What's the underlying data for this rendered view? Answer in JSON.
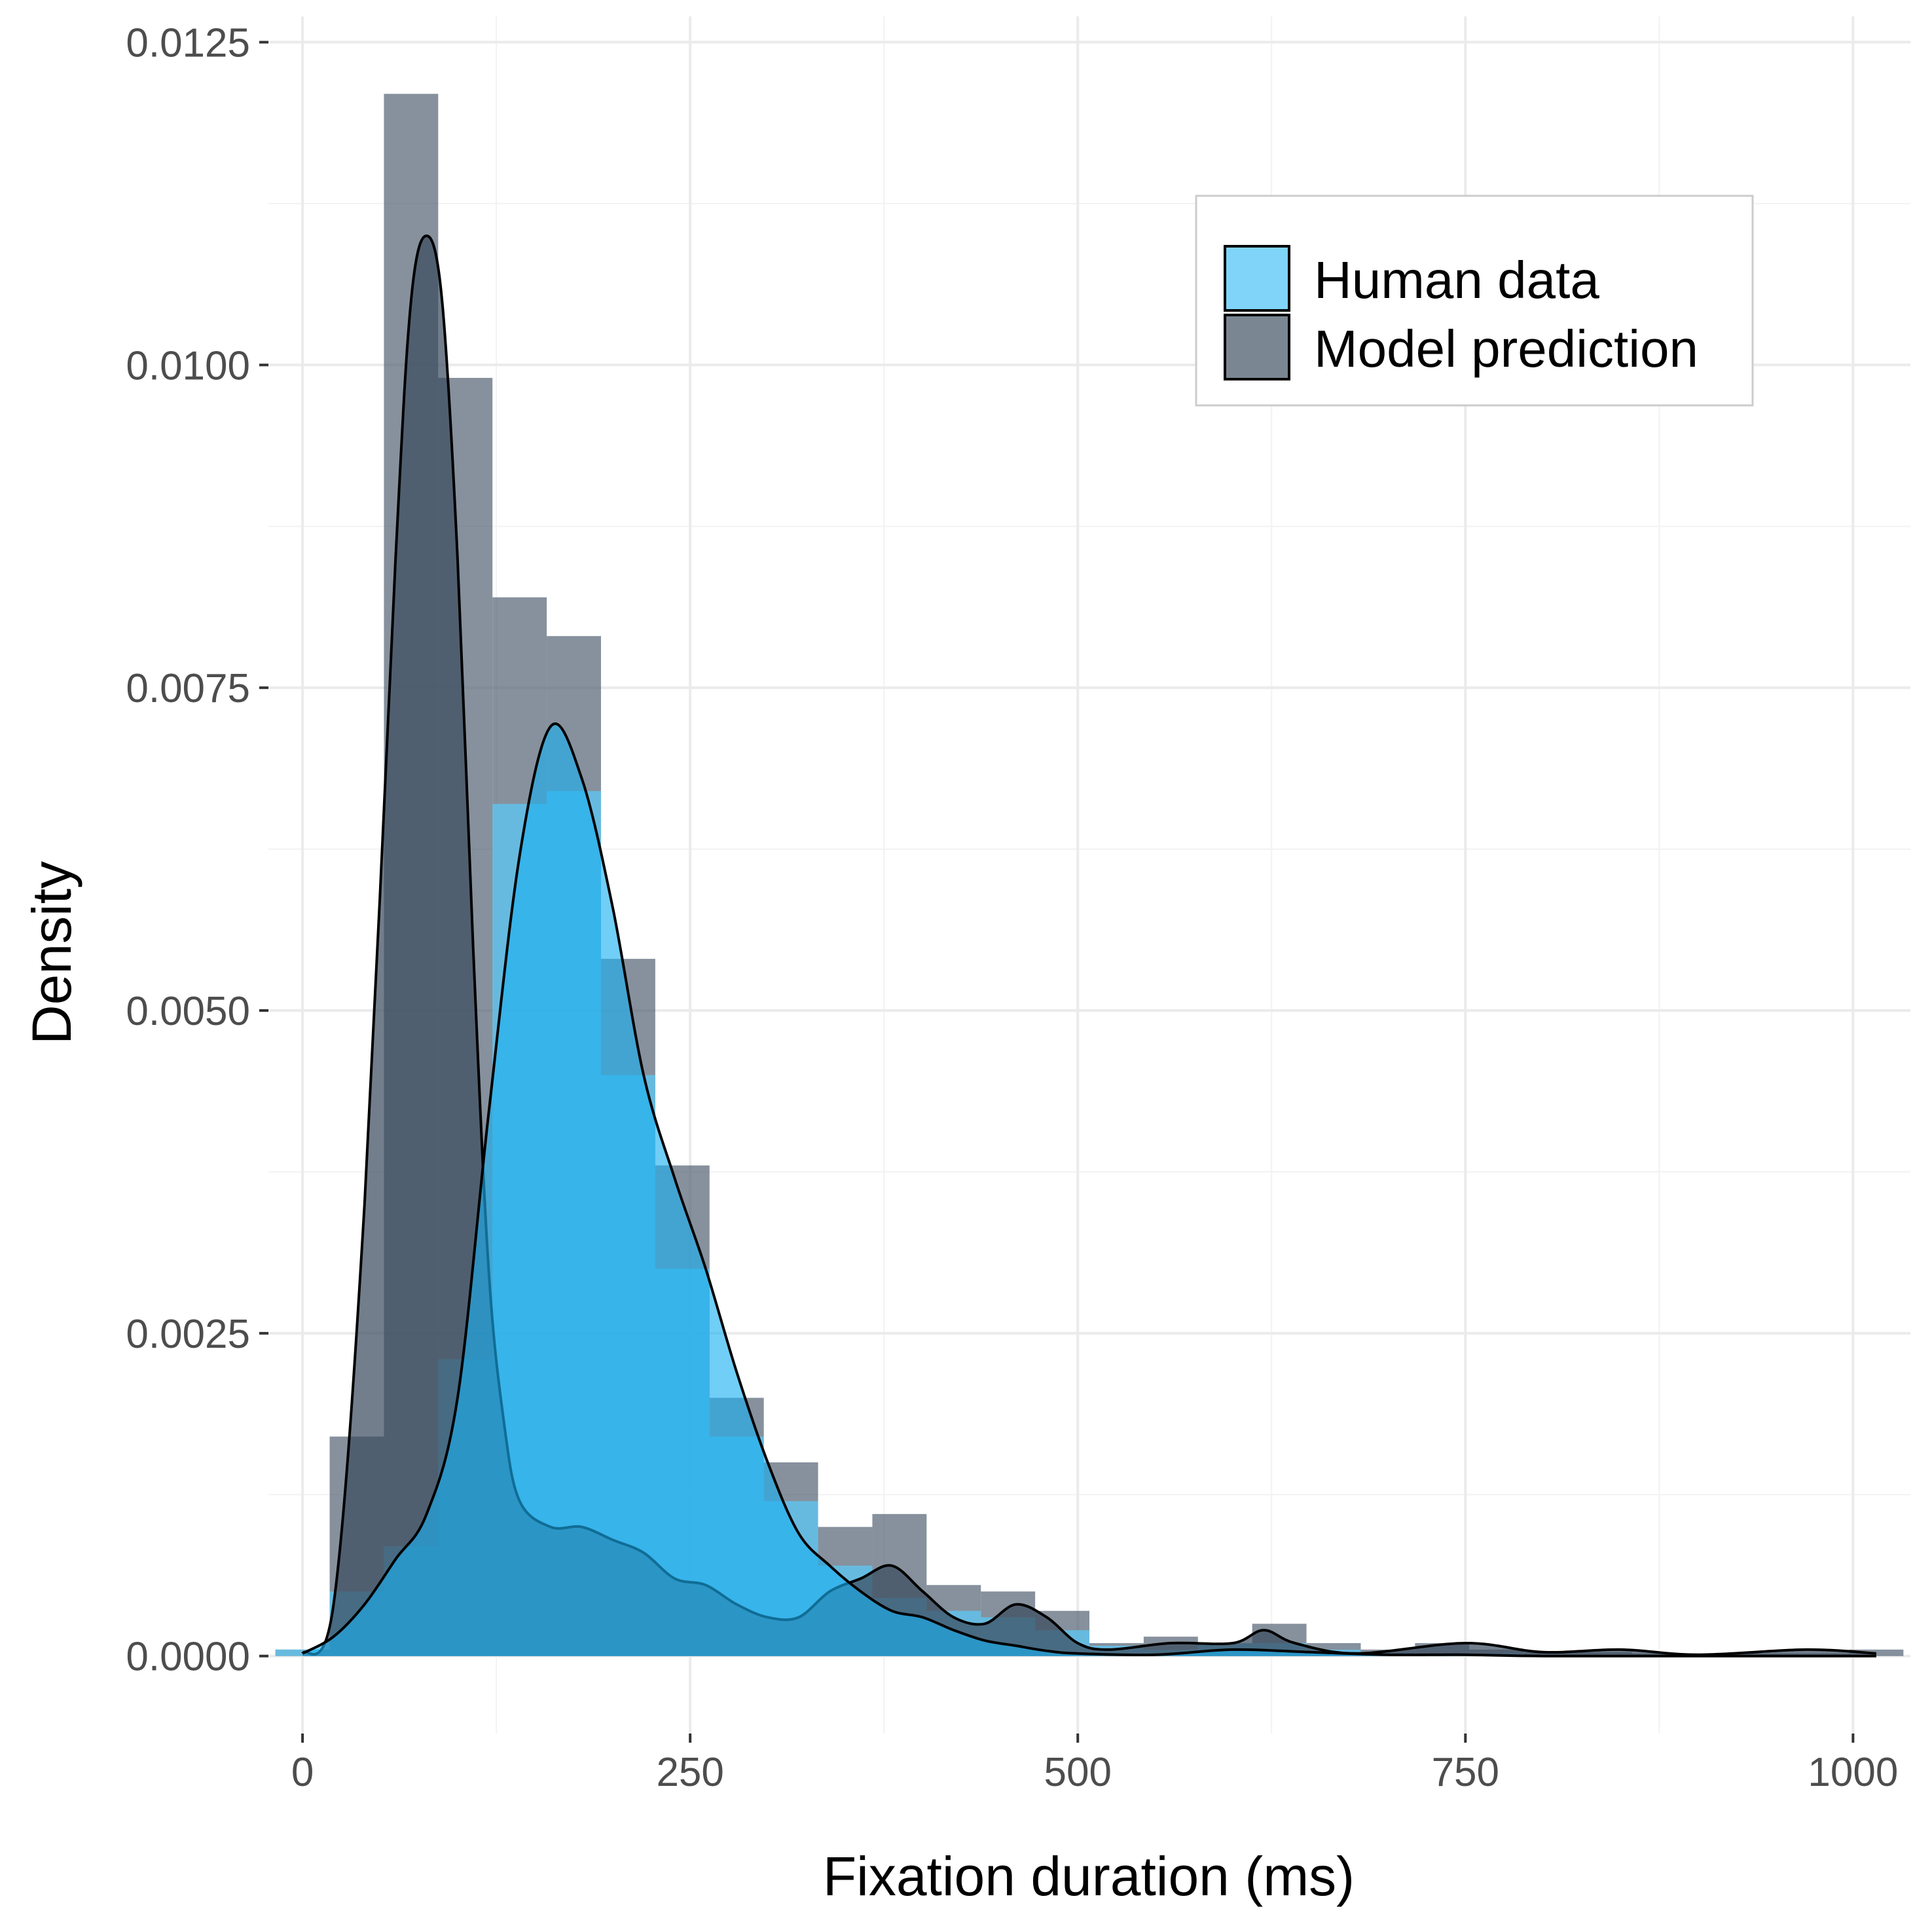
{
  "chart_data": {
    "type": "histogram",
    "xlabel": "Fixation duration (ms)",
    "ylabel": "Density",
    "xlim": [
      -22,
      1037
    ],
    "ylim": [
      -0.0006,
      0.0127
    ],
    "x_ticks": [
      0,
      250,
      500,
      750,
      1000
    ],
    "x_tick_labels": [
      "0",
      "250",
      "500",
      "750",
      "1000"
    ],
    "y_ticks": [
      0,
      0.0025,
      0.005,
      0.0075,
      0.01,
      0.0125
    ],
    "y_tick_labels": [
      "0.0000",
      "0.0025",
      "0.0050",
      "0.0075",
      "0.0100",
      "0.0125"
    ],
    "grid": true,
    "legend": {
      "position": "top-right",
      "entries": [
        {
          "label": "Human data",
          "color": "#80d4fa"
        },
        {
          "label": "Model prediction",
          "color": "#4d5d6e"
        }
      ]
    },
    "bin_edges": [
      -17.5,
      17.5,
      52.5,
      87.5,
      122.5,
      157.5,
      192.5,
      227.5,
      262.5,
      297.5,
      332.5,
      367.5,
      402.5,
      437.5,
      472.5,
      507.5,
      542.5,
      577.5,
      612.5,
      647.5,
      682.5,
      717.5,
      752.5,
      787.5,
      822.5,
      857.5,
      892.5,
      927.5,
      962.5,
      997.5,
      1032.5
    ],
    "series": [
      {
        "name": "Human data",
        "color": "#38bff6",
        "bin_density": [
          5e-05,
          0.0005,
          0.00085,
          0.0023,
          0.0066,
          0.0067,
          0.0045,
          0.003,
          0.0017,
          0.0012,
          0.0007,
          0.00045,
          0.00035,
          0.0003,
          0.0002,
          8e-05,
          5e-05,
          0.0001,
          0.0001,
          5e-05,
          2e-05,
          2e-05,
          2e-05,
          0,
          0,
          0,
          0,
          0,
          0,
          0
        ],
        "density_x": [
          0,
          20,
          40,
          60,
          80,
          100,
          120,
          140,
          160,
          180,
          200,
          220,
          240,
          260,
          280,
          300,
          320,
          340,
          360,
          380,
          400,
          420,
          440,
          460,
          480,
          500,
          550,
          600,
          650,
          700,
          750,
          800,
          900,
          1000,
          1015
        ],
        "density_y": [
          2e-05,
          0.00015,
          0.0004,
          0.00075,
          0.0011,
          0.002,
          0.0042,
          0.0062,
          0.0072,
          0.0068,
          0.0058,
          0.0045,
          0.0037,
          0.003,
          0.0022,
          0.0015,
          0.00095,
          0.0007,
          0.0005,
          0.00035,
          0.0003,
          0.0002,
          0.00012,
          8e-05,
          4e-05,
          2e-05,
          1e-05,
          5e-05,
          3e-05,
          1e-05,
          1e-05,
          0,
          0,
          0,
          0
        ]
      },
      {
        "name": "Model prediction",
        "color": "#4d5d6e",
        "bin_density": [
          5e-05,
          0.0017,
          0.0121,
          0.0099,
          0.0082,
          0.0079,
          0.0054,
          0.0038,
          0.002,
          0.0015,
          0.001,
          0.0011,
          0.00055,
          0.0005,
          0.00035,
          0.0001,
          0.00015,
          0.0001,
          0.00025,
          0.0001,
          5e-05,
          0.0001,
          5e-05,
          3e-05,
          3e-05,
          2e-05,
          2e-05,
          2e-05,
          2e-05,
          5e-05
        ],
        "density_x": [
          0,
          20,
          40,
          60,
          70,
          80,
          90,
          100,
          110,
          120,
          130,
          140,
          160,
          180,
          200,
          220,
          240,
          260,
          280,
          300,
          320,
          340,
          360,
          380,
          400,
          420,
          440,
          460,
          480,
          500,
          520,
          560,
          600,
          620,
          640,
          680,
          750,
          800,
          850,
          900,
          970,
          1015
        ],
        "density_y": [
          2e-05,
          0.0004,
          0.0035,
          0.0085,
          0.0105,
          0.011,
          0.0105,
          0.0085,
          0.0055,
          0.003,
          0.0018,
          0.0012,
          0.001,
          0.001,
          0.0009,
          0.0008,
          0.0006,
          0.00055,
          0.0004,
          0.0003,
          0.0003,
          0.0005,
          0.0006,
          0.0007,
          0.0005,
          0.0003,
          0.00025,
          0.0004,
          0.0003,
          0.0001,
          5e-05,
          0.0001,
          0.0001,
          0.0002,
          0.0001,
          2e-05,
          0.0001,
          3e-05,
          5e-05,
          1e-05,
          5e-05,
          2e-05
        ]
      }
    ]
  }
}
